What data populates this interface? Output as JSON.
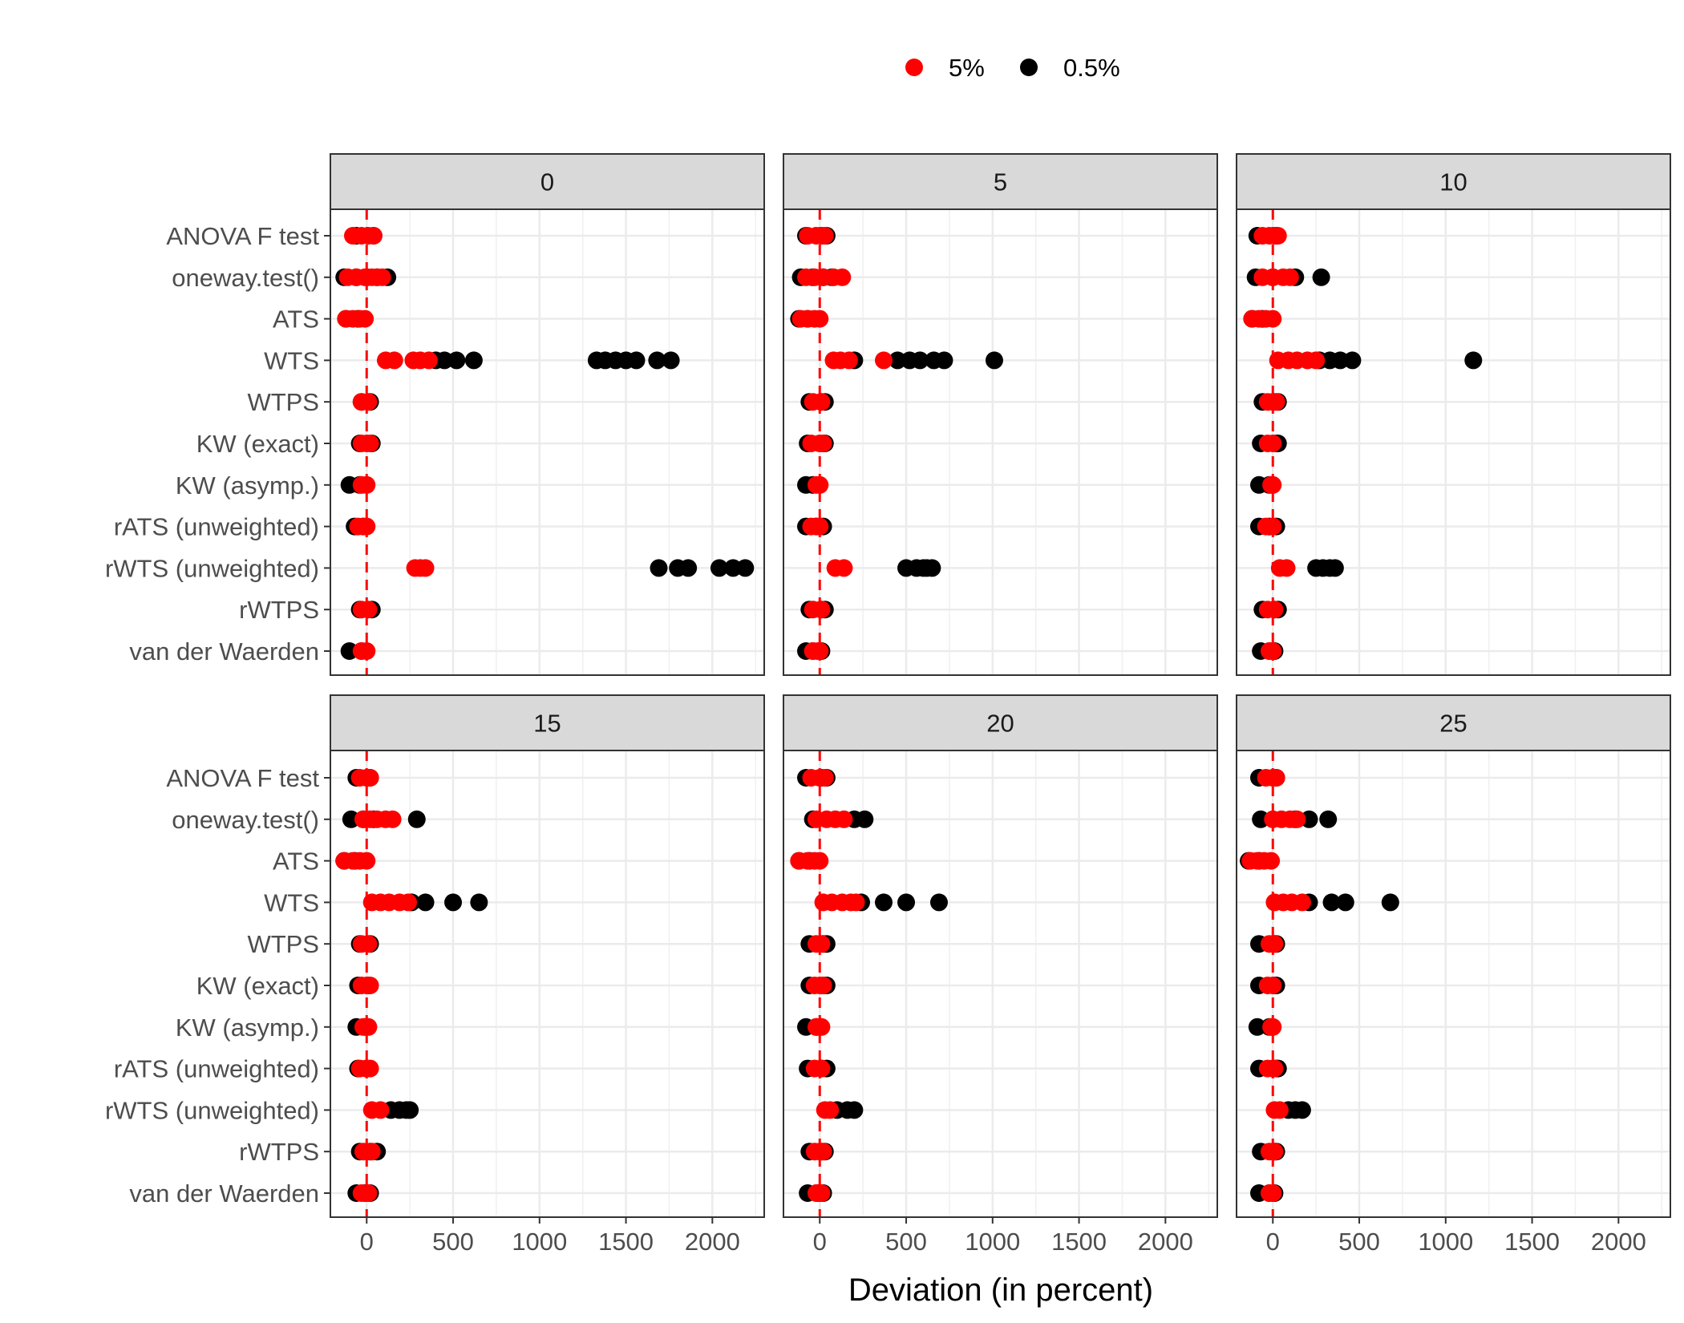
{
  "chart_data": {
    "type": "scatter",
    "title": "",
    "xlabel": "Deviation (in percent)",
    "ylabel": "",
    "xlim": [
      -210,
      2300
    ],
    "x_ticks": [
      0,
      500,
      1000,
      1500,
      2000
    ],
    "reference_line_x": 0,
    "grid": true,
    "legend_position": "top",
    "colors": {
      "5%": "#ff0000",
      "0.5%": "#000000",
      "refline": "#ff0000",
      "strip": "#d9d9d9"
    },
    "legend": [
      {
        "label": "5%",
        "color": "#ff0000"
      },
      {
        "label": "0.5%",
        "color": "#000000"
      }
    ],
    "categories": [
      "ANOVA F test",
      "oneway.test()",
      "ATS",
      "WTS",
      "WTPS",
      "KW (exact)",
      "KW (asymp.)",
      "rATS (unweighted)",
      "rWTS (unweighted)",
      "rWTPS",
      "van der Waerden"
    ],
    "panels": [
      {
        "label": "0",
        "points": {
          "0.5%": [
            [
              -60,
              40
            ],
            [
              -130,
              -60,
              0,
              60,
              120
            ],
            [
              -120,
              -50
            ],
            [
              400,
              450,
              520,
              620,
              1330,
              1380,
              1440,
              1500,
              1560,
              1680,
              1760
            ],
            [
              -30,
              20
            ],
            [
              -40,
              30
            ],
            [
              -100,
              -40
            ],
            [
              -70,
              -20
            ],
            [
              1690,
              1800,
              1860,
              2040,
              2120,
              2190
            ],
            [
              -40,
              30
            ],
            [
              -100,
              -30
            ]
          ],
          "5%": [
            [
              -80,
              -30,
              10,
              40
            ],
            [
              -110,
              -60,
              -10,
              30,
              60,
              90
            ],
            [
              -120,
              -80,
              -40,
              -10
            ],
            [
              110,
              160,
              270,
              310,
              360
            ],
            [
              -30,
              10
            ],
            [
              -30,
              0,
              20
            ],
            [
              -30,
              0
            ],
            [
              -50,
              -20,
              0
            ],
            [
              280,
              310,
              340
            ],
            [
              -30,
              10
            ],
            [
              -30,
              0
            ]
          ]
        }
      },
      {
        "label": "5",
        "points": {
          "0.5%": [
            [
              -80,
              10,
              40
            ],
            [
              -110,
              -40,
              20,
              70
            ],
            [
              -120,
              -70
            ],
            [
              200,
              450,
              520,
              580,
              660,
              720,
              1010
            ],
            [
              -60,
              10,
              30
            ],
            [
              -70,
              20,
              30
            ],
            [
              -80,
              -40
            ],
            [
              -80,
              -20,
              20
            ],
            [
              500,
              560,
              600,
              620,
              650
            ],
            [
              -60,
              10,
              30
            ],
            [
              -80,
              -40,
              10
            ]
          ],
          "5%": [
            [
              -70,
              -20,
              10,
              30
            ],
            [
              -80,
              -30,
              20,
              80,
              130
            ],
            [
              -110,
              -70,
              -30,
              0
            ],
            [
              80,
              120,
              170,
              370
            ],
            [
              -40,
              10
            ],
            [
              -50,
              0,
              20
            ],
            [
              -20,
              0
            ],
            [
              -50,
              -20,
              0
            ],
            [
              90,
              140
            ],
            [
              -40,
              10
            ],
            [
              -40,
              -10,
              0
            ]
          ],
          "note": "single 5% WTS point near 370"
        }
      },
      {
        "label": "10",
        "points": {
          "0.5%": [
            [
              -90,
              20
            ],
            [
              -100,
              0,
              130,
              280
            ],
            [
              -120,
              -60
            ],
            [
              270,
              330,
              390,
              460,
              1160
            ],
            [
              -60,
              10,
              30
            ],
            [
              -70,
              20,
              30
            ],
            [
              -80,
              -20
            ],
            [
              -80,
              -20,
              20
            ],
            [
              250,
              290,
              330,
              360
            ],
            [
              -60,
              10,
              30
            ],
            [
              -70,
              -20,
              10
            ]
          ],
          "5%": [
            [
              -60,
              -20,
              10,
              30
            ],
            [
              -60,
              0,
              60,
              100
            ],
            [
              -120,
              -80,
              -40,
              0
            ],
            [
              30,
              90,
              140,
              200,
              250
            ],
            [
              -30,
              0,
              20
            ],
            [
              -30,
              0
            ],
            [
              -10,
              0
            ],
            [
              -40,
              0
            ],
            [
              40,
              80
            ],
            [
              -30,
              10
            ],
            [
              -20,
              0
            ]
          ]
        }
      },
      {
        "label": "15",
        "points": {
          "0.5%": [
            [
              -60,
              20
            ],
            [
              -90,
              -20,
              40,
              290
            ],
            [
              -130,
              -70
            ],
            [
              260,
              340,
              500,
              650
            ],
            [
              -40,
              20
            ],
            [
              -50,
              10
            ],
            [
              -60,
              -10
            ],
            [
              -50,
              0
            ],
            [
              140,
              190,
              230,
              250
            ],
            [
              -40,
              20,
              60
            ],
            [
              -60,
              -10,
              20
            ]
          ],
          "5%": [
            [
              -40,
              0,
              20
            ],
            [
              -20,
              20,
              60,
              110,
              150
            ],
            [
              -130,
              -80,
              -40,
              0
            ],
            [
              30,
              80,
              130,
              190,
              240
            ],
            [
              -30,
              10
            ],
            [
              -30,
              0,
              20
            ],
            [
              -20,
              10
            ],
            [
              -40,
              0,
              20
            ],
            [
              30,
              80
            ],
            [
              -20,
              0,
              30
            ],
            [
              -30,
              0,
              10
            ]
          ]
        }
      },
      {
        "label": "20",
        "points": {
          "0.5%": [
            [
              -80,
              10,
              40
            ],
            [
              -40,
              200,
              260
            ],
            [
              -120,
              -60
            ],
            [
              240,
              370,
              500,
              690
            ],
            [
              -60,
              20,
              40
            ],
            [
              -60,
              20,
              40
            ],
            [
              -80,
              -20
            ],
            [
              -70,
              10,
              40
            ],
            [
              100,
              160,
              200
            ],
            [
              -60,
              10,
              30
            ],
            [
              -70,
              -10,
              20
            ]
          ],
          "5%": [
            [
              -50,
              0,
              30
            ],
            [
              -20,
              40,
              90,
              140
            ],
            [
              -120,
              -70,
              -30,
              0
            ],
            [
              20,
              70,
              130,
              180,
              210
            ],
            [
              -20,
              10
            ],
            [
              -30,
              0,
              20
            ],
            [
              -20,
              0,
              10
            ],
            [
              -30,
              10
            ],
            [
              30,
              60
            ],
            [
              -30,
              0,
              20
            ],
            [
              -20,
              0,
              10
            ]
          ]
        }
      },
      {
        "label": "25",
        "points": {
          "0.5%": [
            [
              -80,
              20
            ],
            [
              -70,
              130,
              210,
              320
            ],
            [
              -140,
              -80
            ],
            [
              210,
              340,
              420,
              680
            ],
            [
              -80,
              10,
              20
            ],
            [
              -80,
              10,
              20
            ],
            [
              -90,
              -20
            ],
            [
              -80,
              20,
              30
            ],
            [
              90,
              130,
              170
            ],
            [
              -70,
              10,
              20
            ],
            [
              -80,
              -20,
              10
            ]
          ],
          "5%": [
            [
              -40,
              0,
              20
            ],
            [
              0,
              50,
              100,
              140
            ],
            [
              -130,
              -90,
              -50,
              -10
            ],
            [
              10,
              60,
              110,
              170
            ],
            [
              -20,
              10
            ],
            [
              -30,
              0
            ],
            [
              -10,
              0
            ],
            [
              -30,
              0,
              10
            ],
            [
              10,
              40
            ],
            [
              -20,
              0,
              10
            ],
            [
              -20,
              0
            ]
          ]
        }
      }
    ]
  }
}
